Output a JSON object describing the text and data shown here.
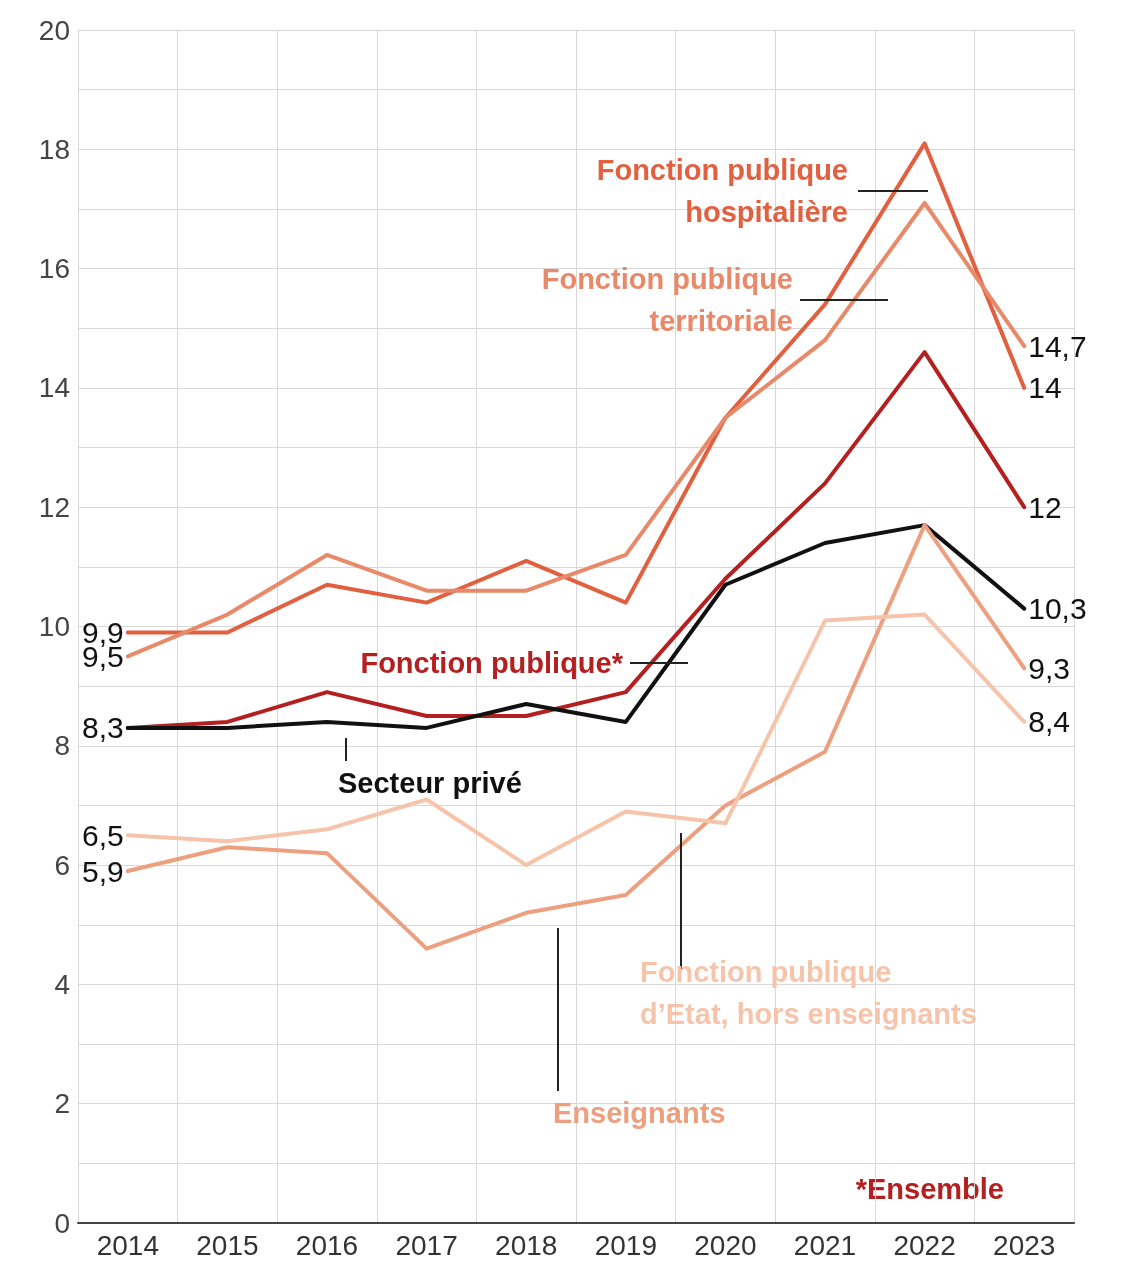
{
  "chart_data": {
    "type": "line",
    "categories": [
      "2014",
      "2015",
      "2016",
      "2017",
      "2018",
      "2019",
      "2020",
      "2021",
      "2022",
      "2023"
    ],
    "series": [
      {
        "name": "Fonction publique hospitalière",
        "color": "#e0603f",
        "values": [
          9.9,
          9.9,
          10.7,
          10.4,
          11.1,
          10.4,
          13.5,
          15.4,
          18.1,
          14
        ],
        "value_labels": [
          "9,9",
          null,
          null,
          null,
          null,
          null,
          null,
          null,
          null,
          "14"
        ]
      },
      {
        "name": "Fonction publique territoriale",
        "color": "#e8896a",
        "values": [
          9.5,
          10.2,
          11.2,
          10.6,
          10.6,
          11.2,
          13.5,
          14.8,
          17.1,
          14.7
        ],
        "value_labels": [
          "9,5",
          null,
          null,
          null,
          null,
          null,
          null,
          null,
          null,
          "14,7"
        ]
      },
      {
        "name": "Fonction publique*",
        "color": "#b3201f",
        "values": [
          8.3,
          8.4,
          8.9,
          8.5,
          8.5,
          8.9,
          10.8,
          12.4,
          14.6,
          12
        ],
        "value_labels": [
          null,
          null,
          null,
          null,
          null,
          null,
          null,
          null,
          null,
          "12"
        ]
      },
      {
        "name": "Secteur privé",
        "color": "#111111",
        "values": [
          8.3,
          8.3,
          8.4,
          8.3,
          8.7,
          8.4,
          10.7,
          11.4,
          11.7,
          10.3
        ],
        "value_labels": [
          "8,3",
          null,
          null,
          null,
          null,
          null,
          null,
          null,
          null,
          "10,3"
        ]
      },
      {
        "name": "Enseignants",
        "color": "#eda080",
        "values": [
          5.9,
          6.3,
          6.2,
          4.6,
          5.2,
          5.5,
          7.0,
          7.9,
          11.7,
          9.3
        ],
        "value_labels": [
          "5,9",
          null,
          null,
          null,
          null,
          null,
          null,
          null,
          null,
          "9,3"
        ]
      },
      {
        "name": "Fonction publique d’Etat, hors enseignants",
        "color": "#f5c4aa",
        "values": [
          6.5,
          6.4,
          6.6,
          7.1,
          6.0,
          6.9,
          6.7,
          10.1,
          10.2,
          8.4
        ],
        "value_labels": [
          "6,5",
          null,
          null,
          null,
          null,
          null,
          null,
          null,
          null,
          "8,4"
        ]
      }
    ],
    "ylim": [
      0,
      20
    ],
    "yticks": [
      0,
      {
        "value": 1,
        "label": null
      },
      2,
      {
        "value": 3,
        "label": null
      },
      4,
      {
        "value": 5,
        "label": null
      },
      6,
      {
        "value": 7,
        "label": null
      },
      8,
      {
        "value": 9,
        "label": null
      },
      10,
      {
        "value": 11,
        "label": null
      },
      12,
      {
        "value": 13,
        "label": null
      },
      14,
      {
        "value": 15,
        "label": null
      },
      16,
      {
        "value": 17,
        "label": null
      },
      18,
      {
        "value": 19,
        "label": null
      },
      20
    ],
    "grid": true,
    "marker": "none",
    "line_style": "solid",
    "annotations": [
      "*Ensemble"
    ]
  }
}
